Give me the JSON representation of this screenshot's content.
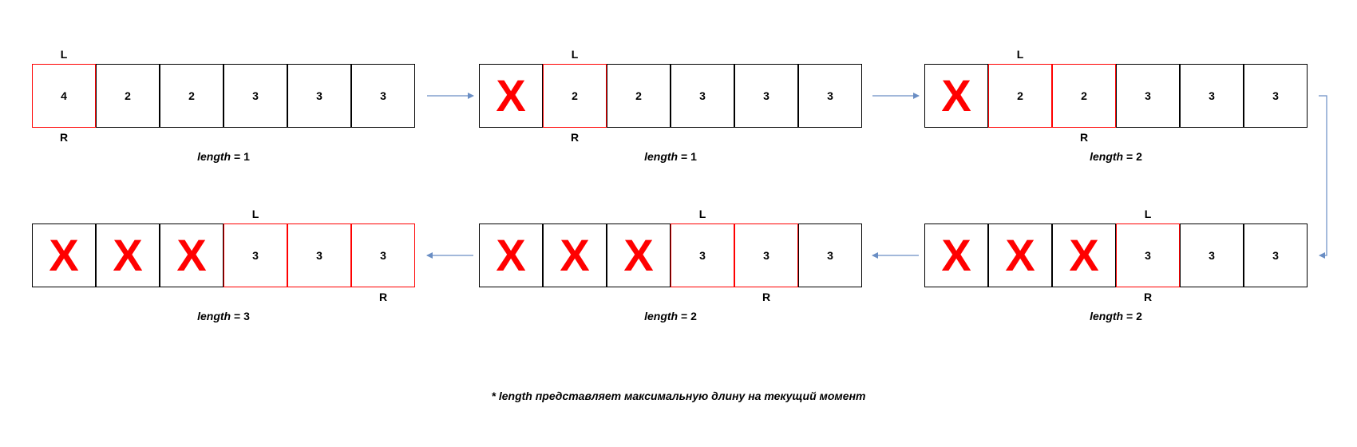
{
  "pointer_labels": {
    "left": "L",
    "right": "R"
  },
  "length_word": "length",
  "length_sep": " = ",
  "removed_glyph": "X",
  "colors": {
    "highlight": "#ff0000",
    "arrow": "#6a8ec4",
    "border": "#000000"
  },
  "steps": [
    {
      "cells": [
        {
          "v": "4",
          "removed": false,
          "hl": true
        },
        {
          "v": "2",
          "removed": false,
          "hl": false
        },
        {
          "v": "2",
          "removed": false,
          "hl": false
        },
        {
          "v": "3",
          "removed": false,
          "hl": false
        },
        {
          "v": "3",
          "removed": false,
          "hl": false
        },
        {
          "v": "3",
          "removed": false,
          "hl": false
        }
      ],
      "L": 0,
      "R": 0,
      "length": "1"
    },
    {
      "cells": [
        {
          "v": "X",
          "removed": true,
          "hl": false
        },
        {
          "v": "2",
          "removed": false,
          "hl": true
        },
        {
          "v": "2",
          "removed": false,
          "hl": false
        },
        {
          "v": "3",
          "removed": false,
          "hl": false
        },
        {
          "v": "3",
          "removed": false,
          "hl": false
        },
        {
          "v": "3",
          "removed": false,
          "hl": false
        }
      ],
      "L": 1,
      "R": 1,
      "length": "1"
    },
    {
      "cells": [
        {
          "v": "X",
          "removed": true,
          "hl": false
        },
        {
          "v": "2",
          "removed": false,
          "hl": true
        },
        {
          "v": "2",
          "removed": false,
          "hl": true
        },
        {
          "v": "3",
          "removed": false,
          "hl": false
        },
        {
          "v": "3",
          "removed": false,
          "hl": false
        },
        {
          "v": "3",
          "removed": false,
          "hl": false
        }
      ],
      "L": 1,
      "R": 2,
      "length": "2"
    },
    {
      "cells": [
        {
          "v": "X",
          "removed": true,
          "hl": false
        },
        {
          "v": "X",
          "removed": true,
          "hl": false
        },
        {
          "v": "X",
          "removed": true,
          "hl": false
        },
        {
          "v": "3",
          "removed": false,
          "hl": true
        },
        {
          "v": "3",
          "removed": false,
          "hl": false
        },
        {
          "v": "3",
          "removed": false,
          "hl": false
        }
      ],
      "L": 3,
      "R": 3,
      "length": "2"
    },
    {
      "cells": [
        {
          "v": "X",
          "removed": true,
          "hl": false
        },
        {
          "v": "X",
          "removed": true,
          "hl": false
        },
        {
          "v": "X",
          "removed": true,
          "hl": false
        },
        {
          "v": "3",
          "removed": false,
          "hl": true
        },
        {
          "v": "3",
          "removed": false,
          "hl": true
        },
        {
          "v": "3",
          "removed": false,
          "hl": false
        }
      ],
      "L": 3,
      "R": 4,
      "length": "2"
    },
    {
      "cells": [
        {
          "v": "X",
          "removed": true,
          "hl": false
        },
        {
          "v": "X",
          "removed": true,
          "hl": false
        },
        {
          "v": "X",
          "removed": true,
          "hl": false
        },
        {
          "v": "3",
          "removed": false,
          "hl": true
        },
        {
          "v": "3",
          "removed": false,
          "hl": true
        },
        {
          "v": "3",
          "removed": false,
          "hl": true
        }
      ],
      "L": 3,
      "R": 5,
      "length": "3"
    }
  ],
  "footnote": "* length представляет максимальную длину на текущий момент"
}
